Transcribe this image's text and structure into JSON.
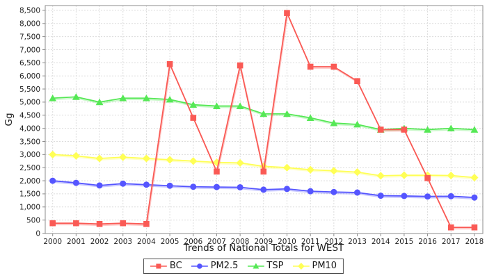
{
  "chart_data": {
    "type": "line",
    "title": "Trends of National Totals for WEST",
    "xlabel": "Trends of National Totals for WEST",
    "ylabel": "Gg",
    "grid": true,
    "grid_style": "dashed",
    "legend_position": "bottom-center",
    "ylim": [
      0,
      8500
    ],
    "y_tick_step": 500,
    "categories": [
      "2000",
      "2001",
      "2002",
      "2003",
      "2004",
      "2005",
      "2006",
      "2007",
      "2008",
      "2009",
      "2010",
      "2011",
      "2012",
      "2013",
      "2014",
      "2015",
      "2016",
      "2017",
      "2018"
    ],
    "series": [
      {
        "name": "BC",
        "color": "#FA5A55",
        "marker": "square",
        "values": [
          380,
          380,
          350,
          380,
          350,
          6450,
          4400,
          2350,
          6400,
          2350,
          8400,
          6350,
          6350,
          5800,
          3950,
          3950,
          2100,
          220,
          220
        ]
      },
      {
        "name": "PM2.5",
        "color": "#5555FF",
        "marker": "circle",
        "values": [
          2000,
          1920,
          1820,
          1890,
          1850,
          1810,
          1770,
          1760,
          1750,
          1660,
          1690,
          1600,
          1570,
          1550,
          1430,
          1420,
          1400,
          1410,
          1360
        ]
      },
      {
        "name": "TSP",
        "color": "#55E855",
        "marker": "triangle",
        "values": [
          5150,
          5200,
          5000,
          5150,
          5150,
          5100,
          4900,
          4850,
          4850,
          4550,
          4550,
          4400,
          4200,
          4150,
          3950,
          4000,
          3950,
          4000,
          3950
        ]
      },
      {
        "name": "PM10",
        "color": "#FFFF55",
        "marker": "diamond",
        "values": [
          3000,
          2950,
          2850,
          2900,
          2850,
          2800,
          2750,
          2700,
          2680,
          2550,
          2500,
          2420,
          2380,
          2330,
          2190,
          2210,
          2210,
          2200,
          2120
        ]
      }
    ],
    "colors": {
      "gridline": "#dcdcdc",
      "axis_border": "#8c8c8c",
      "tick_text": "#1f1f1f"
    }
  }
}
